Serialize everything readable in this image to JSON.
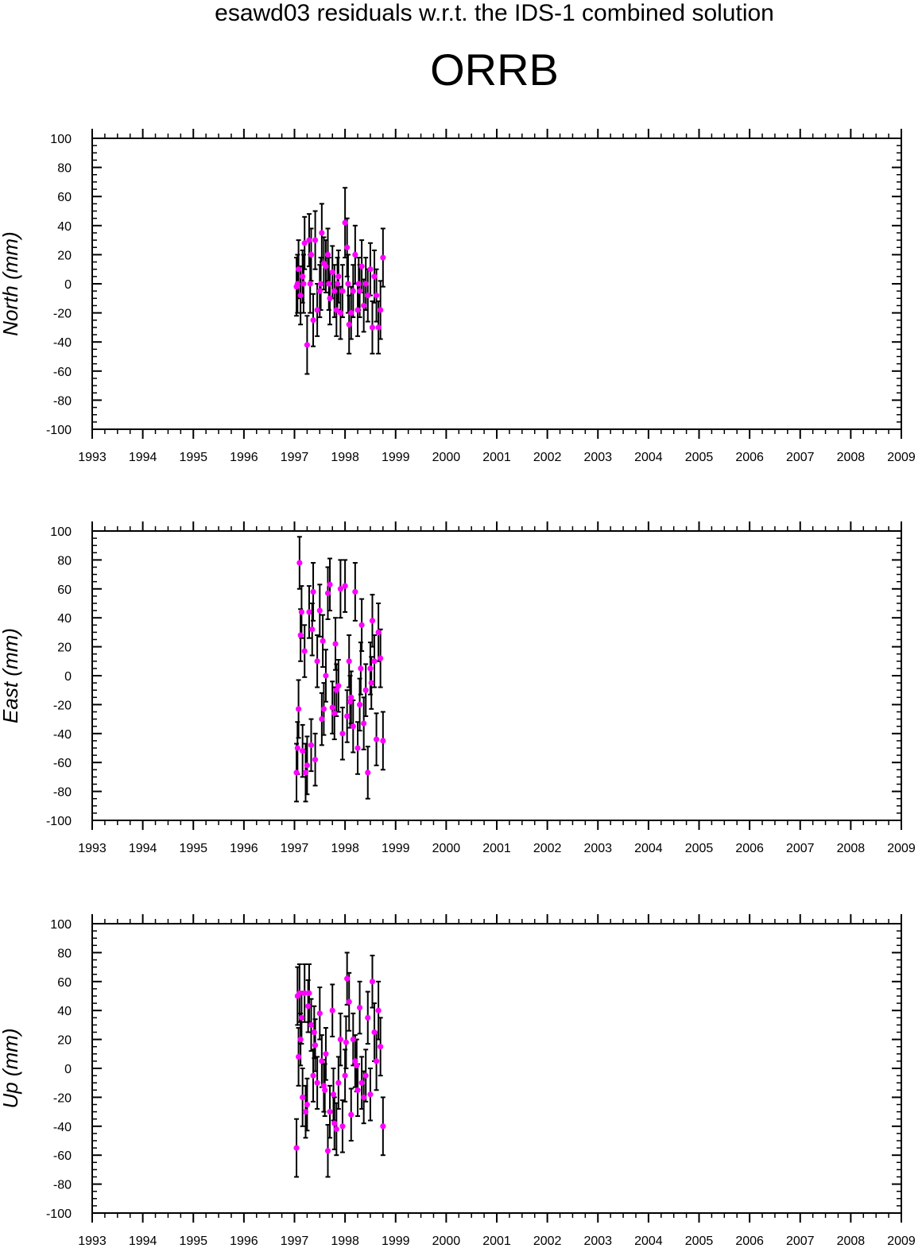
{
  "title": "esawd03 residuals w.r.t. the IDS-1 combined solution",
  "subtitle": "ORRB",
  "colors": {
    "point": "#ff00ff",
    "errorbar": "#000000",
    "frame": "#000000",
    "background": "#ffffff"
  },
  "chart_data": [
    {
      "type": "scatter",
      "ylabel": "North (mm)",
      "xlim": [
        1993,
        2009
      ],
      "ylim": [
        -100,
        100
      ],
      "x_ticks": [
        "1993",
        "1994",
        "1995",
        "1996",
        "1997",
        "1998",
        "1999",
        "2000",
        "2001",
        "2002",
        "2003",
        "2004",
        "2005",
        "2006",
        "2007",
        "2008",
        "2009"
      ],
      "y_ticks": [
        "100",
        "80",
        "60",
        "40",
        "20",
        "0",
        "-20",
        "-40",
        "-60",
        "-80",
        "-100"
      ],
      "grid": false,
      "legend": "none",
      "series": [
        {
          "x": [
            1997.04,
            1997.08,
            1997.12,
            1997.16,
            1997.2,
            1997.25,
            1997.29,
            1997.33,
            1997.37,
            1997.41,
            1997.45,
            1997.5,
            1997.54,
            1997.58,
            1997.62,
            1997.66,
            1997.7,
            1997.75,
            1997.79,
            1997.83,
            1997.87,
            1997.91,
            1997.95,
            1998.0,
            1998.04,
            1998.08,
            1998.12,
            1998.16,
            1998.2,
            1998.25,
            1998.29,
            1998.33,
            1998.37,
            1998.41,
            1998.45,
            1998.5,
            1998.54,
            1998.58,
            1998.62,
            1998.66,
            1998.7,
            1998.75,
            1997.06,
            1997.18,
            1997.31,
            1997.52,
            1997.68,
            1997.85,
            1998.06,
            1998.27
          ],
          "y": [
            -2,
            10,
            -8,
            5,
            28,
            -42,
            30,
            20,
            -25,
            30,
            -18,
            -5,
            35,
            14,
            12,
            20,
            -10,
            8,
            -5,
            -18,
            5,
            -20,
            -5,
            42,
            25,
            -28,
            -20,
            -5,
            20,
            -18,
            -5,
            12,
            -15,
            0,
            -8,
            10,
            -30,
            5,
            -8,
            -30,
            -18,
            18,
            0,
            0,
            0,
            0,
            0,
            0,
            0,
            0
          ],
          "err": [
            20,
            20,
            20,
            18,
            18,
            20,
            18,
            18,
            18,
            20,
            18,
            18,
            20,
            18,
            18,
            18,
            18,
            18,
            18,
            18,
            18,
            18,
            18,
            24,
            20,
            20,
            18,
            18,
            20,
            18,
            18,
            18,
            18,
            18,
            18,
            18,
            18,
            18,
            18,
            18,
            20,
            20,
            20,
            20,
            20,
            18,
            18,
            18,
            20,
            18
          ]
        }
      ]
    },
    {
      "type": "scatter",
      "ylabel": "East (mm)",
      "xlim": [
        1993,
        2009
      ],
      "ylim": [
        -100,
        100
      ],
      "x_ticks": [
        "1993",
        "1994",
        "1995",
        "1996",
        "1997",
        "1998",
        "1999",
        "2000",
        "2001",
        "2002",
        "2003",
        "2004",
        "2005",
        "2006",
        "2007",
        "2008",
        "2009"
      ],
      "y_ticks": [
        "100",
        "80",
        "60",
        "40",
        "20",
        "0",
        "-20",
        "-40",
        "-60",
        "-80",
        "-100"
      ],
      "grid": false,
      "legend": "none",
      "series": [
        {
          "x": [
            1997.04,
            1997.06,
            1997.08,
            1997.1,
            1997.12,
            1997.16,
            1997.2,
            1997.22,
            1997.25,
            1997.29,
            1997.33,
            1997.37,
            1997.41,
            1997.45,
            1997.5,
            1997.54,
            1997.58,
            1997.62,
            1997.66,
            1997.7,
            1997.75,
            1997.79,
            1997.83,
            1997.87,
            1997.91,
            1997.95,
            1998.0,
            1998.04,
            1998.08,
            1998.12,
            1998.16,
            1998.2,
            1998.25,
            1998.29,
            1998.33,
            1998.37,
            1998.41,
            1998.45,
            1998.5,
            1998.54,
            1998.58,
            1998.62,
            1998.66,
            1998.7,
            1998.75,
            1997.14,
            1997.35,
            1997.56,
            1997.81,
            1998.1,
            1998.31,
            1998.52
          ],
          "y": [
            -67,
            -50,
            -23,
            78,
            28,
            -52,
            17,
            -67,
            -62,
            44,
            -48,
            58,
            -58,
            10,
            45,
            -30,
            -23,
            0,
            57,
            63,
            -22,
            -26,
            -10,
            -7,
            60,
            -40,
            62,
            -28,
            10,
            -15,
            -35,
            58,
            -50,
            -20,
            35,
            -33,
            -10,
            -67,
            5,
            38,
            10,
            -44,
            30,
            12,
            -45,
            44,
            32,
            24,
            22,
            -18,
            5,
            -5
          ],
          "err": [
            20,
            18,
            20,
            18,
            18,
            18,
            18,
            20,
            20,
            18,
            18,
            20,
            18,
            18,
            18,
            18,
            18,
            18,
            18,
            18,
            18,
            18,
            18,
            18,
            20,
            18,
            18,
            18,
            18,
            18,
            18,
            20,
            18,
            18,
            18,
            18,
            18,
            18,
            18,
            18,
            18,
            18,
            20,
            20,
            20,
            18,
            18,
            18,
            18,
            18,
            18,
            18
          ]
        }
      ]
    },
    {
      "type": "scatter",
      "ylabel": "Up (mm)",
      "xlim": [
        1993,
        2009
      ],
      "ylim": [
        -100,
        100
      ],
      "x_ticks": [
        "1993",
        "1994",
        "1995",
        "1996",
        "1997",
        "1998",
        "1999",
        "2000",
        "2001",
        "2002",
        "2003",
        "2004",
        "2005",
        "2006",
        "2007",
        "2008",
        "2009"
      ],
      "y_ticks": [
        "100",
        "80",
        "60",
        "40",
        "20",
        "0",
        "-20",
        "-40",
        "-60",
        "-80",
        "-100"
      ],
      "grid": false,
      "legend": "none",
      "series": [
        {
          "x": [
            1997.04,
            1997.06,
            1997.08,
            1997.1,
            1997.12,
            1997.16,
            1997.2,
            1997.22,
            1997.25,
            1997.29,
            1997.33,
            1997.37,
            1997.41,
            1997.45,
            1997.5,
            1997.54,
            1997.58,
            1997.62,
            1997.66,
            1997.7,
            1997.75,
            1997.79,
            1997.83,
            1997.87,
            1997.91,
            1997.95,
            1998.0,
            1998.04,
            1998.08,
            1998.12,
            1998.16,
            1998.2,
            1998.25,
            1998.29,
            1998.33,
            1998.37,
            1998.41,
            1998.45,
            1998.5,
            1998.54,
            1998.58,
            1998.62,
            1998.66,
            1998.7,
            1998.75,
            1997.14,
            1997.27,
            1997.39,
            1997.6,
            1997.77,
            1998.02,
            1998.23
          ],
          "y": [
            -55,
            50,
            8,
            52,
            20,
            -20,
            52,
            -30,
            -25,
            52,
            30,
            -5,
            16,
            -10,
            38,
            5,
            -12,
            10,
            -57,
            -30,
            40,
            -38,
            -42,
            -10,
            20,
            -40,
            -5,
            62,
            46,
            -32,
            20,
            5,
            -15,
            42,
            -10,
            -20,
            -5,
            35,
            -18,
            60,
            25,
            5,
            40,
            15,
            -40,
            35,
            43,
            25,
            -15,
            -18,
            18,
            2
          ],
          "err": [
            20,
            20,
            20,
            20,
            18,
            20,
            20,
            18,
            18,
            20,
            18,
            18,
            18,
            18,
            18,
            18,
            18,
            18,
            18,
            18,
            18,
            18,
            18,
            18,
            18,
            18,
            18,
            18,
            20,
            18,
            18,
            18,
            18,
            18,
            18,
            18,
            18,
            18,
            18,
            18,
            20,
            20,
            20,
            20,
            20,
            18,
            18,
            18,
            18,
            18,
            18,
            18
          ]
        }
      ]
    }
  ]
}
